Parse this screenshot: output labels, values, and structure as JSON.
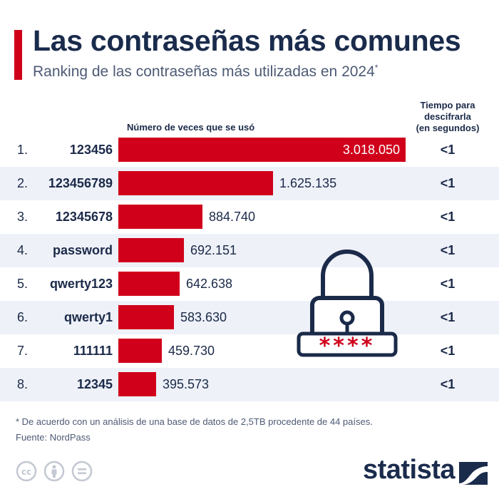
{
  "header": {
    "title": "Las contraseñas más comunes",
    "subtitle": "Ranking de las contraseñas más utilizadas en 2024",
    "subtitle_mark": "*"
  },
  "columns": {
    "count_header": "Número de veces que se usó",
    "time_header": [
      "Tiempo para",
      "descifrarla",
      "(en segundos)"
    ]
  },
  "colors": {
    "accent": "#d0001b",
    "text": "#1b2a49",
    "alt_row": "#eef1f8"
  },
  "chart_data": {
    "type": "bar",
    "orientation": "horizontal",
    "categories": [
      "123456",
      "123456789",
      "12345678",
      "password",
      "qwerty123",
      "qwerty1",
      "111111",
      "12345"
    ],
    "ranks": [
      "1.",
      "2.",
      "3.",
      "4.",
      "5.",
      "6.",
      "7.",
      "8."
    ],
    "values": [
      3018050,
      1625135,
      884740,
      692151,
      642638,
      583630,
      459730,
      395573
    ],
    "value_labels": [
      "3.018.050",
      "1.625.135",
      "884.740",
      "692.151",
      "642.638",
      "583.630",
      "459.730",
      "395.573"
    ],
    "crack_time": [
      "<1",
      "<1",
      "<1",
      "<1",
      "<1",
      "<1",
      "<1",
      "<1"
    ],
    "xlim": [
      0,
      3018050
    ]
  },
  "illustration": {
    "icon": "padlock-icon",
    "masked_password": "****"
  },
  "footer": {
    "footnote": "* De acuerdo con un análisis de una base de datos de 2,5TB procedente de 44 países.",
    "source": "Fuente: NordPass",
    "license_icons": [
      "cc-icon",
      "attribution-icon",
      "no-derivatives-icon"
    ],
    "brand": "statista"
  }
}
